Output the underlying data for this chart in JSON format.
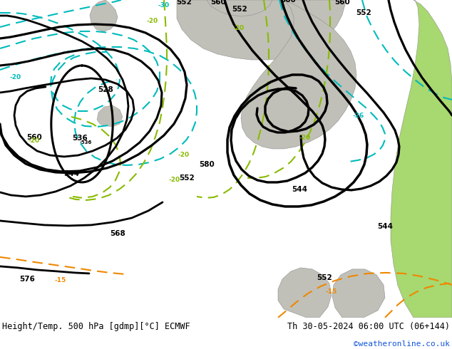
{
  "title_left": "Height/Temp. 500 hPa [gdmp][°C] ECMWF",
  "title_right": "Th 30-05-2024 06:00 UTC (06+144)",
  "watermark": "©weatheronline.co.uk",
  "land_green": "#a8d870",
  "land_gray": "#c0c0b8",
  "sea_gray": "#d0d0cc",
  "black": "#000000",
  "cyan": "#00bbbb",
  "chartreuse": "#88bb00",
  "orange": "#ee8800",
  "fig_width": 6.34,
  "fig_height": 4.9,
  "dpi": 100
}
